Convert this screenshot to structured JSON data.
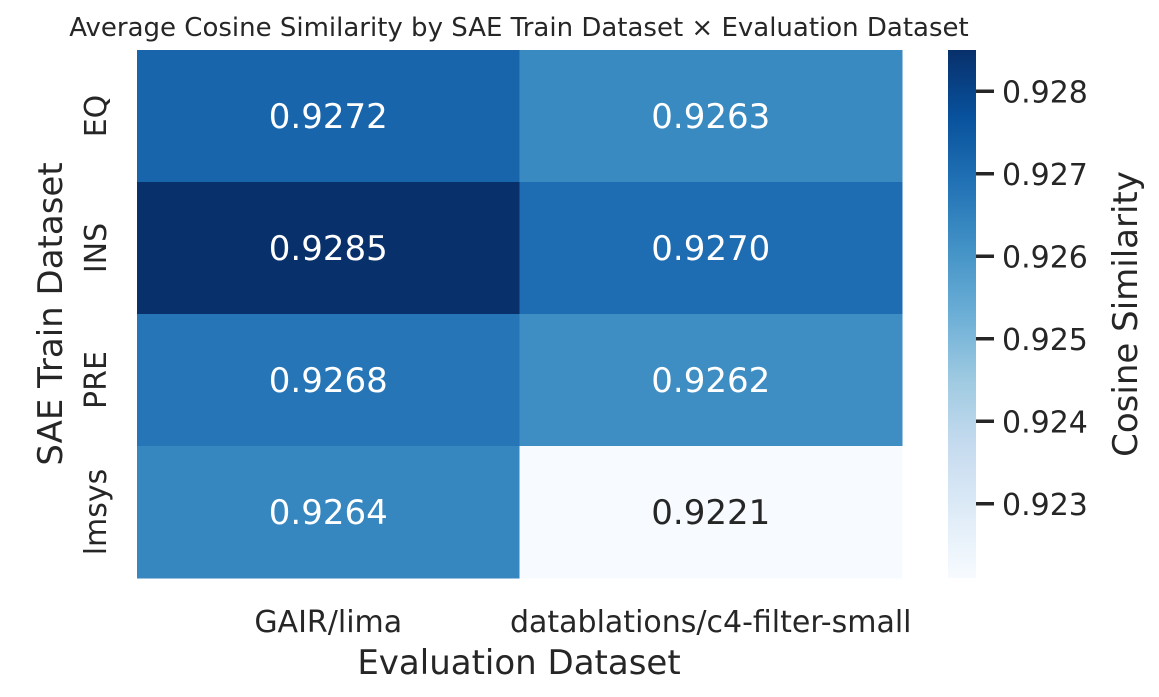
{
  "chart_data": {
    "type": "heatmap",
    "title": "Average Cosine Similarity by SAE Train Dataset × Evaluation Dataset",
    "xlabel": "Evaluation Dataset",
    "ylabel": "SAE Train Dataset",
    "x_categories": [
      "GAIR/lima",
      "datablations/c4-filter-small"
    ],
    "y_categories": [
      "EQ",
      "INS",
      "PRE",
      "lmsys"
    ],
    "values": [
      [
        0.9272,
        0.9263
      ],
      [
        0.9285,
        0.927
      ],
      [
        0.9268,
        0.9262
      ],
      [
        0.9264,
        0.9221
      ]
    ],
    "value_labels": [
      [
        "0.9272",
        "0.9263"
      ],
      [
        "0.9285",
        "0.9270"
      ],
      [
        "0.9268",
        "0.9262"
      ],
      [
        "0.9264",
        "0.9221"
      ]
    ],
    "colorbar": {
      "label": "Cosine Similarity",
      "range": [
        0.9221,
        0.9285
      ],
      "ticks": [
        0.923,
        0.924,
        0.925,
        0.926,
        0.927,
        0.928
      ],
      "tick_labels": [
        "0.923",
        "0.924",
        "0.925",
        "0.926",
        "0.927",
        "0.928"
      ],
      "colormap": "Blues"
    },
    "grid": false
  }
}
